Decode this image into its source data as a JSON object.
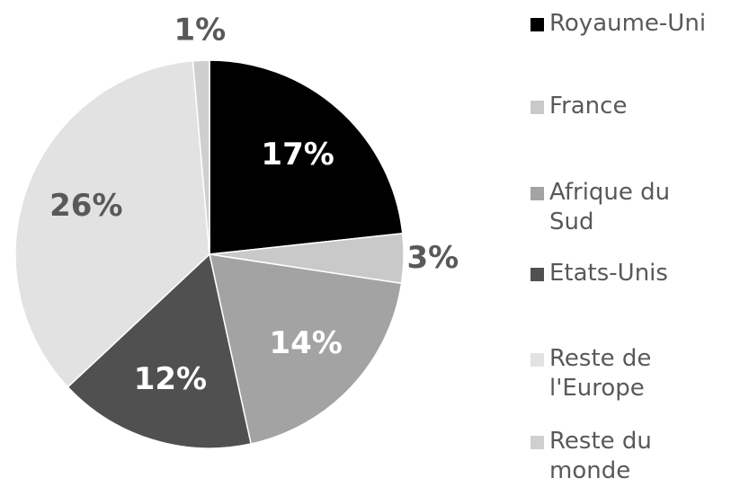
{
  "chart_data": {
    "type": "pie",
    "categories": [
      "Royaume-Uni",
      "France",
      "Afrique du Sud",
      "Etats-Unis",
      "Reste de l'Europe",
      "Reste du monde"
    ],
    "values": [
      17,
      3,
      14,
      12,
      26,
      1
    ],
    "value_labels": [
      "17%",
      "3%",
      "14%",
      "12%",
      "26%",
      "1%"
    ],
    "colors": [
      "#000000",
      "#c9c9c9",
      "#a3a3a3",
      "#505050",
      "#e2e2e2",
      "#cfcfcf"
    ],
    "label_colors": [
      "#ffffff",
      "#595959",
      "#ffffff",
      "#ffffff",
      "#595959",
      "#595959"
    ],
    "legend": "right"
  }
}
